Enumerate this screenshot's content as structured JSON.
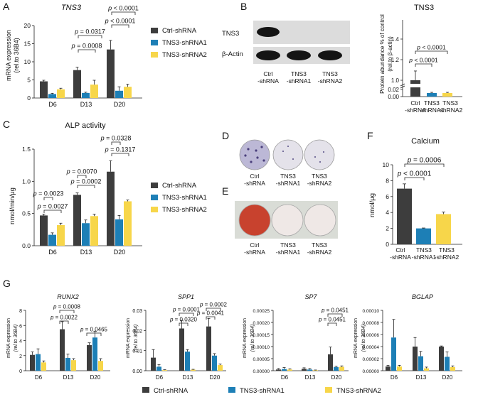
{
  "colors": {
    "ctrl": "#3d3d3d",
    "sh1": "#1d7fb6",
    "sh2": "#f7d64a",
    "wb_band": "#141414",
    "wb_bg": "#dcdcdc",
    "alp_plate": "#c9c5d9",
    "red_plate": "#c8422e"
  },
  "panel_letters": {
    "A": "A",
    "B": "B",
    "C": "C",
    "D": "D",
    "E": "E",
    "F": "F",
    "G": "G"
  },
  "legend": [
    "Ctrl-shRNA",
    "TNS3-shRNA1",
    "TNS3-shRNA2"
  ],
  "chart_data": [
    {
      "id": "A",
      "type": "bar",
      "title": "TNS3",
      "ylabel_line1": "mRNA expression",
      "ylabel_line2": "(rel.to 36B4)",
      "ylim": [
        0,
        20
      ],
      "yticks": [
        "0",
        "5",
        "10",
        "15",
        "20"
      ],
      "categories": [
        "D6",
        "D13",
        "D20"
      ],
      "series": [
        {
          "name": "Ctrl-shRNA",
          "values": [
            4.6,
            7.7,
            13.4
          ],
          "errors": [
            0.3,
            0.8,
            2.5
          ]
        },
        {
          "name": "TNS3-shRNA1",
          "values": [
            1.1,
            1.4,
            2.0
          ],
          "errors": [
            0.2,
            0.2,
            1.1
          ]
        },
        {
          "name": "TNS3-shRNA2",
          "values": [
            2.4,
            3.7,
            3.1
          ],
          "errors": [
            0.3,
            1.2,
            0.7
          ]
        }
      ],
      "annotations": [
        "p = 0.0008",
        "p = 0.0317",
        "p < 0.0001",
        "p < 0.0001"
      ]
    },
    {
      "id": "B",
      "type": "bar",
      "title": "TNS3",
      "ylabel_line1": "Protein abundance % of control",
      "ylabel_line2": "(rel.to β-actin)",
      "yticks": [
        "0.00",
        "0.02",
        "1.0",
        "1.2",
        "1.4"
      ],
      "categories": [
        "Ctrl -shRNA",
        "TNS3 -shRNA1",
        "TNS3 -shRNA2"
      ],
      "values": [
        1.0,
        0.01,
        0.01
      ],
      "errors": [
        0.09,
        0.002,
        0.002
      ],
      "annotations": [
        "p < 0.0001",
        "p < 0.0001"
      ],
      "blot_labels": [
        "TNS3",
        "β-Actin"
      ],
      "lane_labels": [
        [
          "Ctrl",
          "-shRNA"
        ],
        [
          "TNS3",
          "-shRNA1"
        ],
        [
          "TNS3",
          "-shRNA2"
        ]
      ]
    },
    {
      "id": "C",
      "type": "bar",
      "title": "ALP activity",
      "ylabel": "nmol/min/μg",
      "ylim": [
        0,
        1.5
      ],
      "yticks": [
        "0.0",
        "0.5",
        "1.0",
        "1.5"
      ],
      "categories": [
        "D6",
        "D13",
        "D20"
      ],
      "series": [
        {
          "name": "Ctrl-shRNA",
          "values": [
            0.47,
            0.79,
            1.15
          ],
          "errors": [
            0.02,
            0.03,
            0.17
          ]
        },
        {
          "name": "TNS3-shRNA1",
          "values": [
            0.17,
            0.35,
            0.41
          ],
          "errors": [
            0.03,
            0.05,
            0.06
          ]
        },
        {
          "name": "TNS3-shRNA2",
          "values": [
            0.32,
            0.46,
            0.69
          ],
          "errors": [
            0.03,
            0.03,
            0.02
          ]
        }
      ],
      "annotations": [
        "p = 0.0027",
        "p = 0.0023",
        "p = 0.0002",
        "p = 0.0070",
        "p = 0.1317",
        "p = 0.0328"
      ]
    },
    {
      "id": "F",
      "type": "bar",
      "title": "Calcium",
      "ylabel": "nmol/μg",
      "ylim": [
        0,
        10
      ],
      "yticks": [
        "0",
        "2",
        "4",
        "6",
        "8",
        "10"
      ],
      "categories": [
        "Ctrl -shRNA",
        "TNS3 -shRNA1",
        "TNS3 -shRNA2"
      ],
      "values": [
        7.0,
        2.0,
        3.8
      ],
      "errors": [
        0.6,
        0.05,
        0.25
      ],
      "annotations": [
        "p = 0.0006",
        "p < 0.0001"
      ]
    },
    {
      "id": "G1",
      "type": "bar",
      "title": "RUNX2",
      "ylabel_line1": "mRNA expression",
      "ylabel_line2": "(rel.to 36B4)",
      "ylim": [
        0,
        8
      ],
      "yticks": [
        "0",
        "2",
        "4",
        "6",
        "8"
      ],
      "categories": [
        "D6",
        "D13",
        "D20"
      ],
      "series": [
        {
          "name": "Ctrl-shRNA",
          "values": [
            2.1,
            5.5,
            3.4
          ],
          "errors": [
            0.4,
            1.0,
            0.3
          ]
        },
        {
          "name": "TNS3-shRNA1",
          "values": [
            2.2,
            1.7,
            4.4
          ],
          "errors": [
            0.7,
            0.5,
            0.8
          ]
        },
        {
          "name": "TNS3-shRNA2",
          "values": [
            1.1,
            1.4,
            1.3
          ],
          "errors": [
            0.2,
            0.2,
            0.3
          ]
        }
      ],
      "annotations": [
        "p = 0.0008",
        "p = 0.0022",
        "p = 0.0465"
      ]
    },
    {
      "id": "G2",
      "type": "bar",
      "title": "SPP1",
      "ylabel_line1": "mRNA expression",
      "ylabel_line2": "(rel.to 36B4)",
      "ylim": [
        0,
        0.03
      ],
      "yticks": [
        "0.00",
        "0.01",
        "0.02",
        "0.03"
      ],
      "categories": [
        "D6",
        "D13",
        "D20"
      ],
      "series": [
        {
          "name": "Ctrl-shRNA",
          "values": [
            0.0065,
            0.021,
            0.022
          ],
          "errors": [
            0.004,
            0.004,
            0.004
          ]
        },
        {
          "name": "TNS3-shRNA1",
          "values": [
            0.002,
            0.0095,
            0.0075
          ],
          "errors": [
            0.001,
            0.001,
            0.001
          ]
        },
        {
          "name": "TNS3-shRNA2",
          "values": [
            0.0003,
            0.0005,
            0.0028
          ],
          "errors": [
            0.0002,
            0.0002,
            0.0005
          ]
        }
      ],
      "annotations": [
        "p = 0.0001",
        "p = 0.0320",
        "p = 0.0002",
        "p = 0.0041"
      ]
    },
    {
      "id": "G3",
      "type": "bar",
      "title": "SP7",
      "ylabel_line1": "mRNA expression",
      "ylabel_line2": "(rel.to 36B4)",
      "ylim": [
        0,
        0.00025
      ],
      "yticks": [
        "0.00000",
        "0.00005",
        "0.00010",
        "0.00015",
        "0.00020",
        "0.00025"
      ],
      "categories": [
        "D6",
        "D13",
        "D20"
      ],
      "series": [
        {
          "name": "Ctrl-shRNA",
          "values": [
            5e-06,
            8e-06,
            6.8e-05
          ],
          "errors": [
            4e-06,
            4e-06,
            3e-05
          ]
        },
        {
          "name": "TNS3-shRNA1",
          "values": [
            7e-06,
            5e-06,
            1.5e-05
          ],
          "errors": [
            6e-06,
            4e-06,
            4e-06
          ]
        },
        {
          "name": "TNS3-shRNA2",
          "values": [
            5e-06,
            2e-06,
            1.6e-05
          ],
          "errors": [
            3e-06,
            1e-06,
            4e-06
          ]
        }
      ],
      "annotations": [
        "p = 0.0451",
        "p = 0.0451"
      ]
    },
    {
      "id": "G4",
      "type": "bar",
      "title": "BGLAP",
      "ylabel_line1": "mRNA expression",
      "ylabel_line2": "(rel.to 36B4)",
      "ylim": [
        0,
        0.0001
      ],
      "yticks": [
        "0.00000",
        "0.00002",
        "0.00004",
        "0.00006",
        "0.00008",
        "0.00010"
      ],
      "categories": [
        "D6",
        "D13",
        "D20"
      ],
      "series": [
        {
          "name": "Ctrl-shRNA",
          "values": [
            7e-06,
            4e-05,
            4e-05
          ],
          "errors": [
            2e-06,
            1.5e-05,
            1e-06
          ]
        },
        {
          "name": "TNS3-shRNA1",
          "values": [
            5.5e-05,
            2.4e-05,
            2.3e-05
          ],
          "errors": [
            3e-05,
            8e-06,
            8e-06
          ]
        },
        {
          "name": "TNS3-shRNA2",
          "values": [
            7e-06,
            4e-06,
            6e-06
          ],
          "errors": [
            2e-06,
            2e-06,
            2e-06
          ]
        }
      ],
      "annotations": []
    }
  ],
  "plate_labels": [
    [
      "Ctrl",
      "-shRNA"
    ],
    [
      "TNS3",
      "-shRNA1"
    ],
    [
      "TNS3",
      "-shRNA2"
    ]
  ]
}
